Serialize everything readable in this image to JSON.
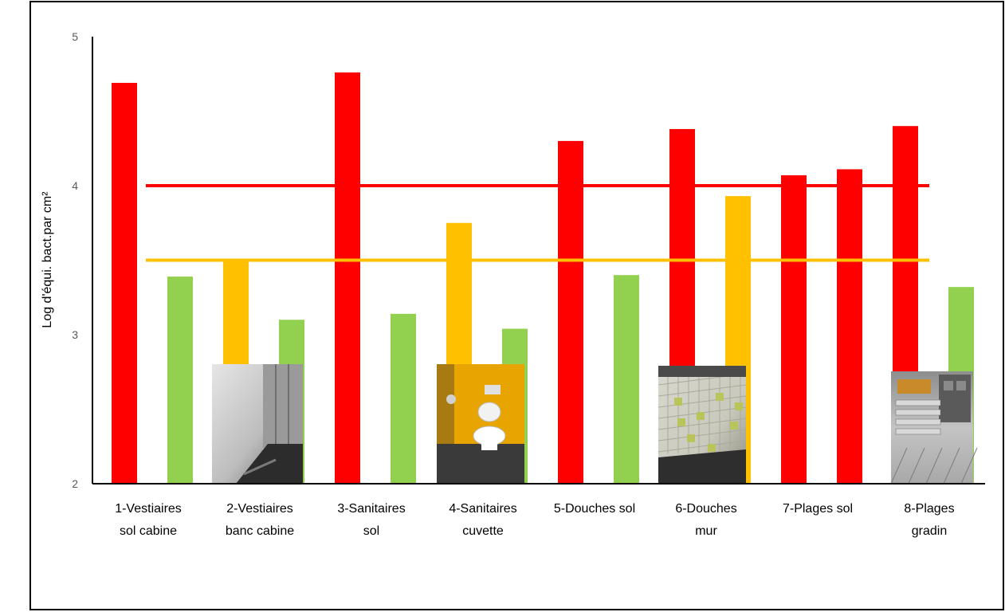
{
  "chart_data": {
    "type": "bar",
    "ylabel": "Log d'équi. bact.par cm²",
    "ylim": [
      2,
      5
    ],
    "yticks": [
      "2",
      "3",
      "4",
      "5"
    ],
    "grid": false,
    "legend": "none",
    "categories": [
      [
        "1-Vestiaires",
        "sol cabine"
      ],
      [
        "2-Vestiaires",
        "banc cabine"
      ],
      [
        "3-Sanitaires",
        "sol"
      ],
      [
        "4-Sanitaires",
        "cuvette"
      ],
      [
        "5-Douches sol"
      ],
      [
        "6-Douches",
        "mur"
      ],
      [
        "7-Plages sol"
      ],
      [
        "8-Plages",
        "gradin"
      ]
    ],
    "bars": [
      [
        {
          "value": 4.69,
          "color": "#ff0000"
        },
        {
          "value": 3.39,
          "color": "#92d050"
        }
      ],
      [
        {
          "value": 3.5,
          "color": "#ffc000"
        },
        {
          "value": 3.1,
          "color": "#92d050"
        }
      ],
      [
        {
          "value": 4.76,
          "color": "#ff0000"
        },
        {
          "value": 3.14,
          "color": "#92d050"
        }
      ],
      [
        {
          "value": 3.75,
          "color": "#ffc000"
        },
        {
          "value": 3.04,
          "color": "#92d050"
        }
      ],
      [
        {
          "value": 4.3,
          "color": "#ff0000"
        },
        {
          "value": 3.4,
          "color": "#92d050"
        }
      ],
      [
        {
          "value": 4.38,
          "color": "#ff0000"
        },
        {
          "value": 3.93,
          "color": "#ffc000"
        }
      ],
      [
        {
          "value": 4.07,
          "color": "#ff0000"
        },
        {
          "value": 4.11,
          "color": "#ff0000"
        }
      ],
      [
        {
          "value": 4.4,
          "color": "#ff0000"
        },
        {
          "value": 3.32,
          "color": "#92d050"
        }
      ]
    ],
    "thresholds": [
      {
        "value": 4.0,
        "color": "#ff0000"
      },
      {
        "value": 3.5,
        "color": "#ffc000"
      }
    ],
    "photos": [
      {
        "category": 1,
        "subject": "locker-room-cabin-floor"
      },
      {
        "category": 3,
        "subject": "toilet-stall"
      },
      {
        "category": 5,
        "subject": "shower-tiled-wall"
      },
      {
        "category": 7,
        "subject": "pool-deck-bleachers"
      }
    ]
  }
}
